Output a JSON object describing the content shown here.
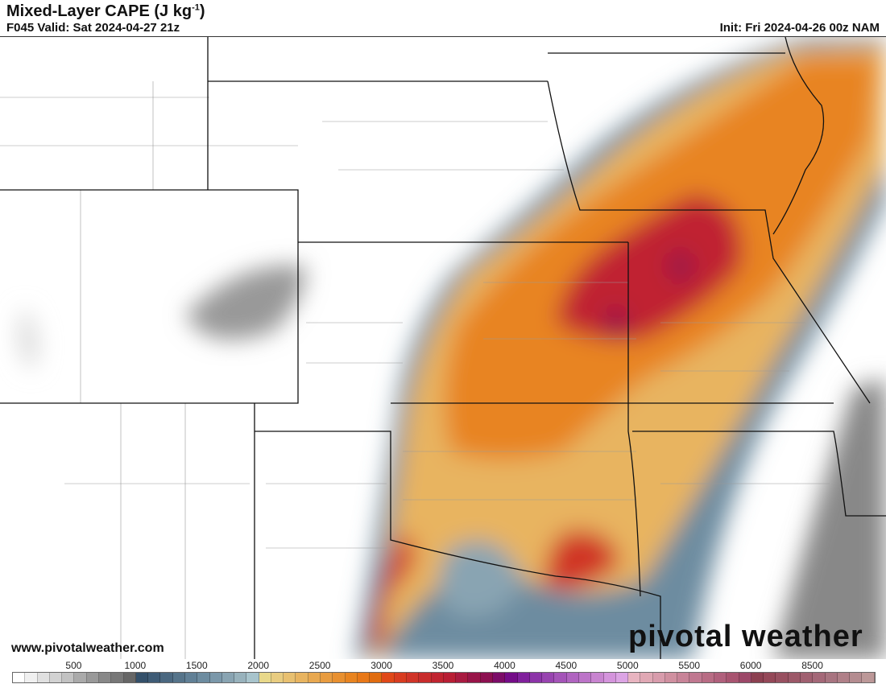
{
  "header": {
    "title": "Mixed-Layer CAPE (J kg",
    "title_sup": "-1",
    "title_end": ")",
    "valid": "F045 Valid: Sat 2024-04-27 21z",
    "init": "Init: Fri 2024-04-26 00z NAM"
  },
  "footer": {
    "url": "www.pivotalweather.com",
    "logo": "pivotal weather"
  },
  "colorbar": {
    "labels": [
      "500",
      "1000",
      "1500",
      "2000",
      "2500",
      "3000",
      "3500",
      "4000",
      "4500",
      "5000",
      "5500",
      "6000",
      "8500"
    ],
    "colors": [
      "#ffffff",
      "#f0f0f0",
      "#e0e0e0",
      "#d2d2d2",
      "#c2c2c2",
      "#aaaaaa",
      "#999999",
      "#888888",
      "#777777",
      "#666666",
      "#34506a",
      "#3f5c76",
      "#4b6880",
      "#56748a",
      "#618096",
      "#6d8ca0",
      "#7b98aa",
      "#89a4b2",
      "#98b2bc",
      "#a8c4cc",
      "#e8d88a",
      "#e8cc80",
      "#e8c070",
      "#e8b460",
      "#e8a850",
      "#e89c40",
      "#e89030",
      "#e88420",
      "#e87818",
      "#e06c10",
      "#e04818",
      "#d83c20",
      "#d03428",
      "#c82c2c",
      "#c02430",
      "#b81e34",
      "#a81a40",
      "#981448",
      "#8c1050",
      "#7c0c68",
      "#740c88",
      "#80209c",
      "#8c34a8",
      "#9844b0",
      "#a454b8",
      "#b064c0",
      "#bc74c8",
      "#c884d0",
      "#d494dc",
      "#dca4e4",
      "#e8b4c0",
      "#e0a8b4",
      "#d89cac",
      "#d090a0",
      "#c88498",
      "#c07890",
      "#b86c84",
      "#b0607c",
      "#a85470",
      "#9c4868",
      "#8c4050",
      "#944858",
      "#985060",
      "#9c5868",
      "#a06070",
      "#a46878",
      "#a87480",
      "#b08088",
      "#b48c90",
      "#bc9898"
    ]
  }
}
